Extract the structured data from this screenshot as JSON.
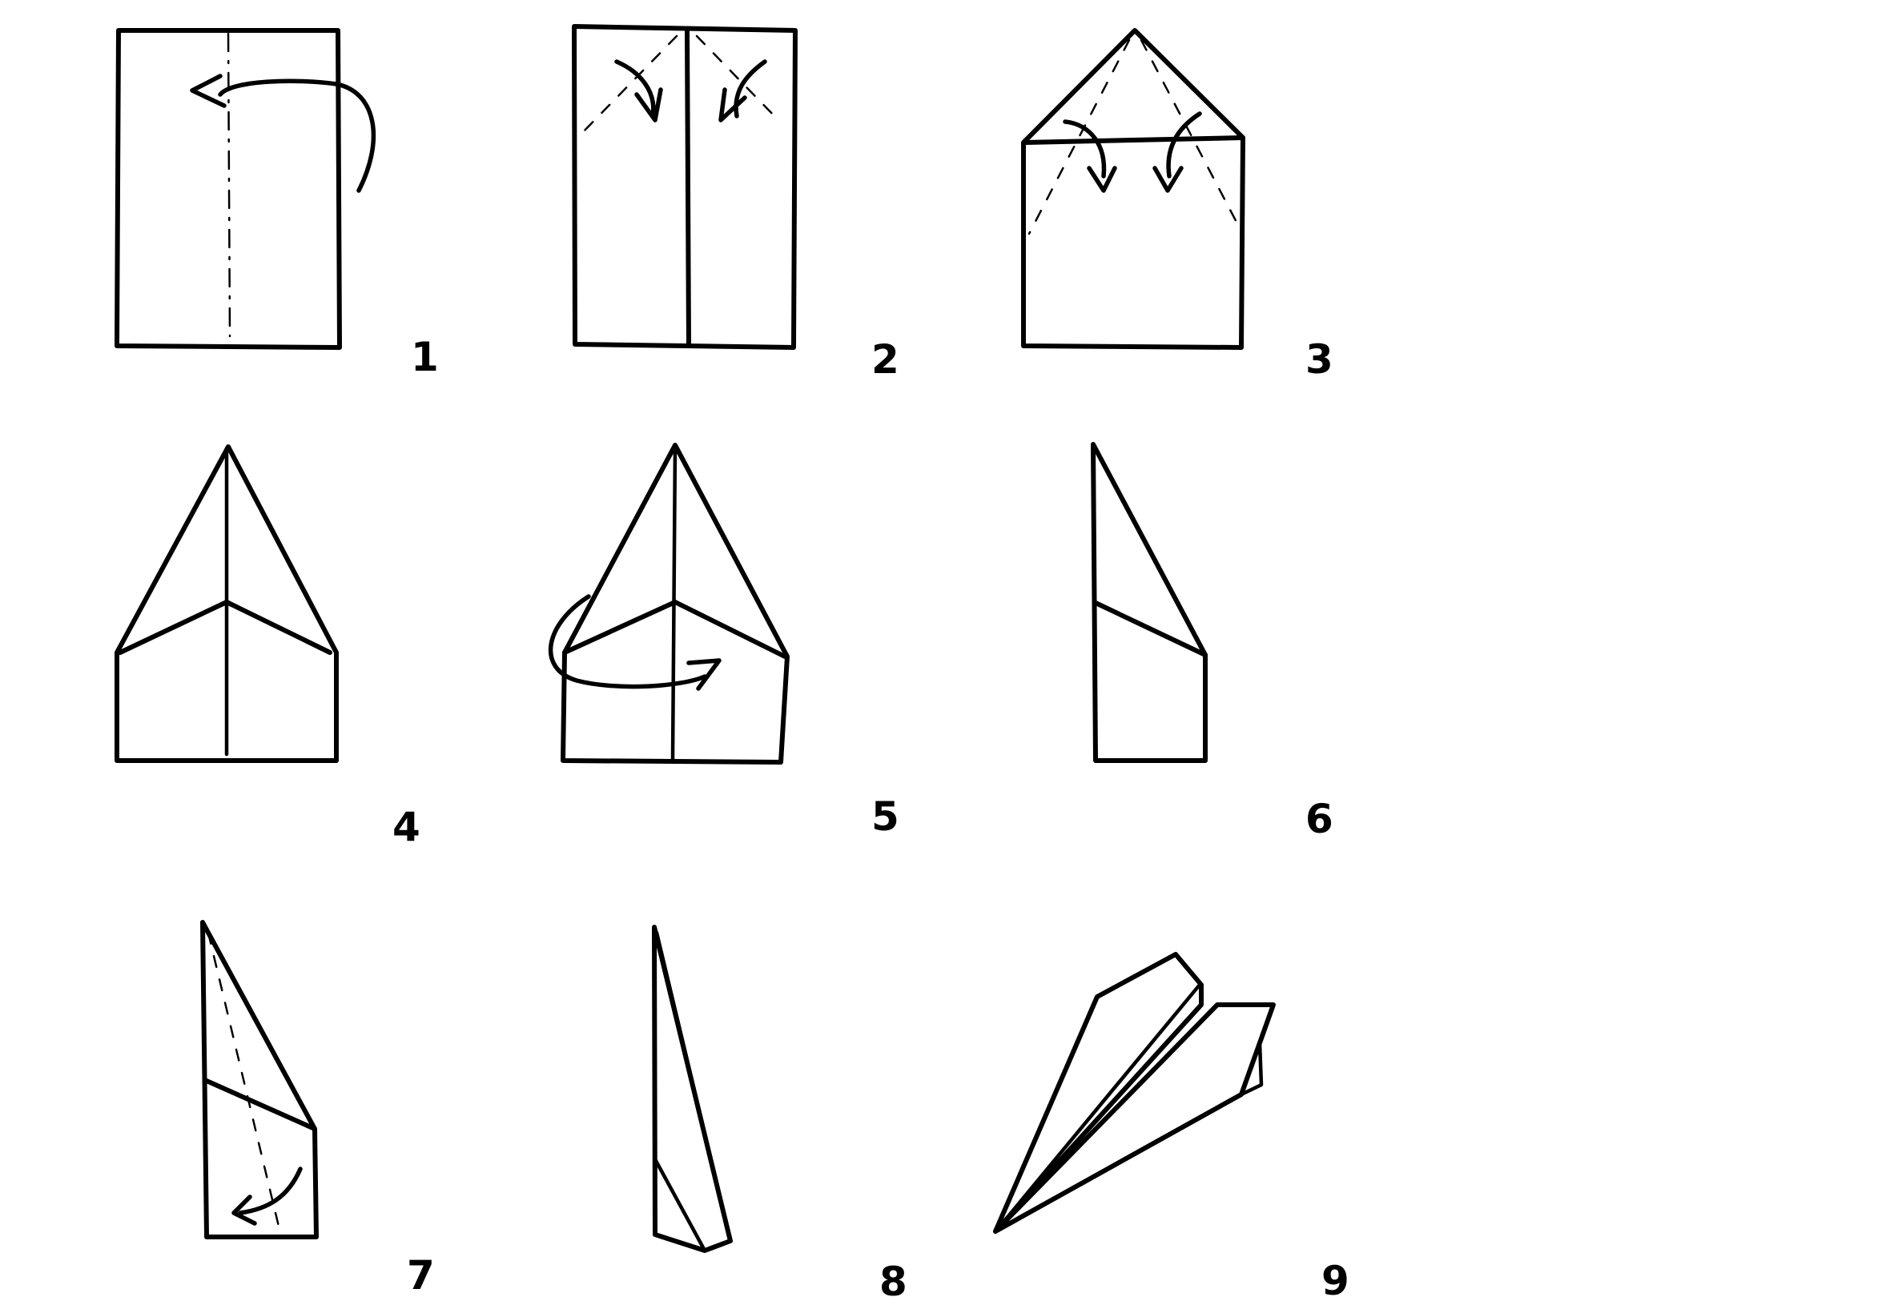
{
  "steps": [
    {
      "label": "1"
    },
    {
      "label": "2"
    },
    {
      "label": "3"
    },
    {
      "label": "4"
    },
    {
      "label": "5"
    },
    {
      "label": "6"
    },
    {
      "label": "7"
    },
    {
      "label": "8"
    },
    {
      "label": "9"
    }
  ]
}
